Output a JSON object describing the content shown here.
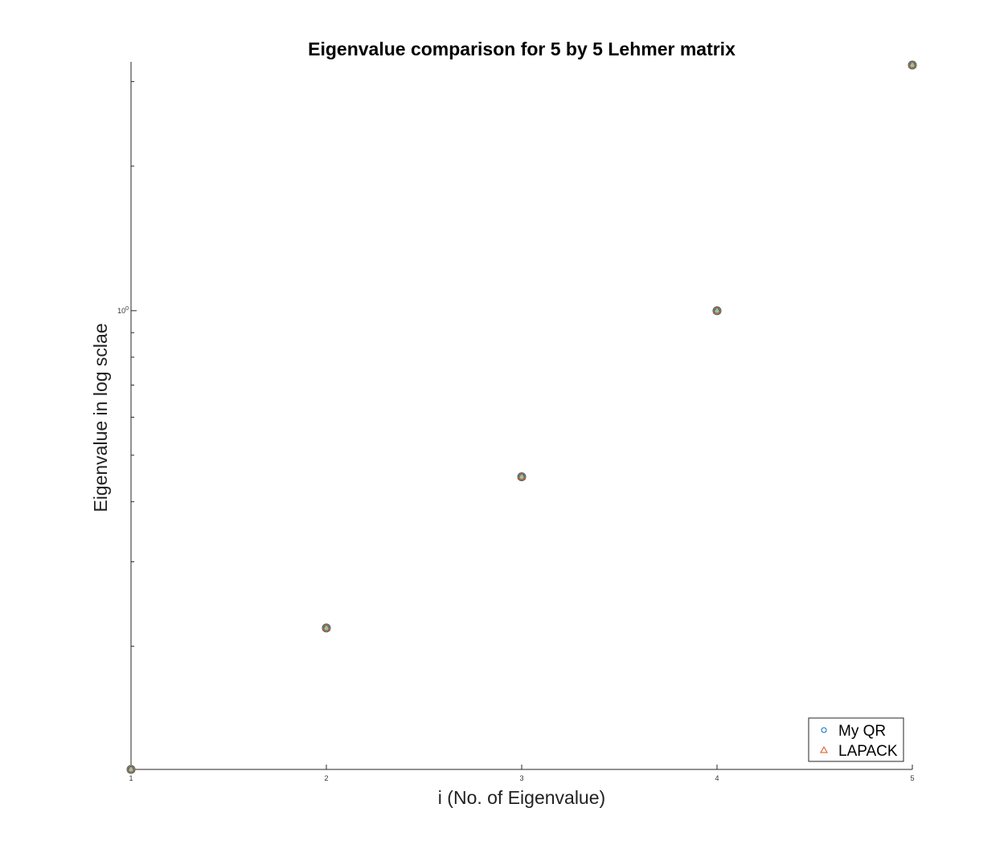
{
  "chart_data": {
    "type": "scatter",
    "title": "Eigenvalue comparison for 5 by 5 Lehmer matrix",
    "xlabel": "i (No. of Eigenvalue)",
    "ylabel": "Eigenvalue in log sclae",
    "xlim": [
      1,
      5
    ],
    "ylim": [
      0.1108,
      3.248
    ],
    "yscale": "log",
    "grid": false,
    "legend_position": "bottom-right",
    "x_ticks": [
      "1",
      "2",
      "3",
      "4",
      "5"
    ],
    "y_tick_label": {
      "base": "10",
      "exponent": "0"
    },
    "x": [
      1,
      2,
      3,
      4,
      5
    ],
    "series": [
      {
        "name": "My QR",
        "marker": "circle",
        "color": "#0072BD",
        "values": [
          0.1108,
          0.2184,
          0.4509,
          1.0,
          3.248
        ]
      },
      {
        "name": "LAPACK",
        "marker": "triangle",
        "color": "#D95319",
        "values": [
          0.1108,
          0.2184,
          0.4509,
          1.0,
          3.248
        ]
      }
    ]
  }
}
